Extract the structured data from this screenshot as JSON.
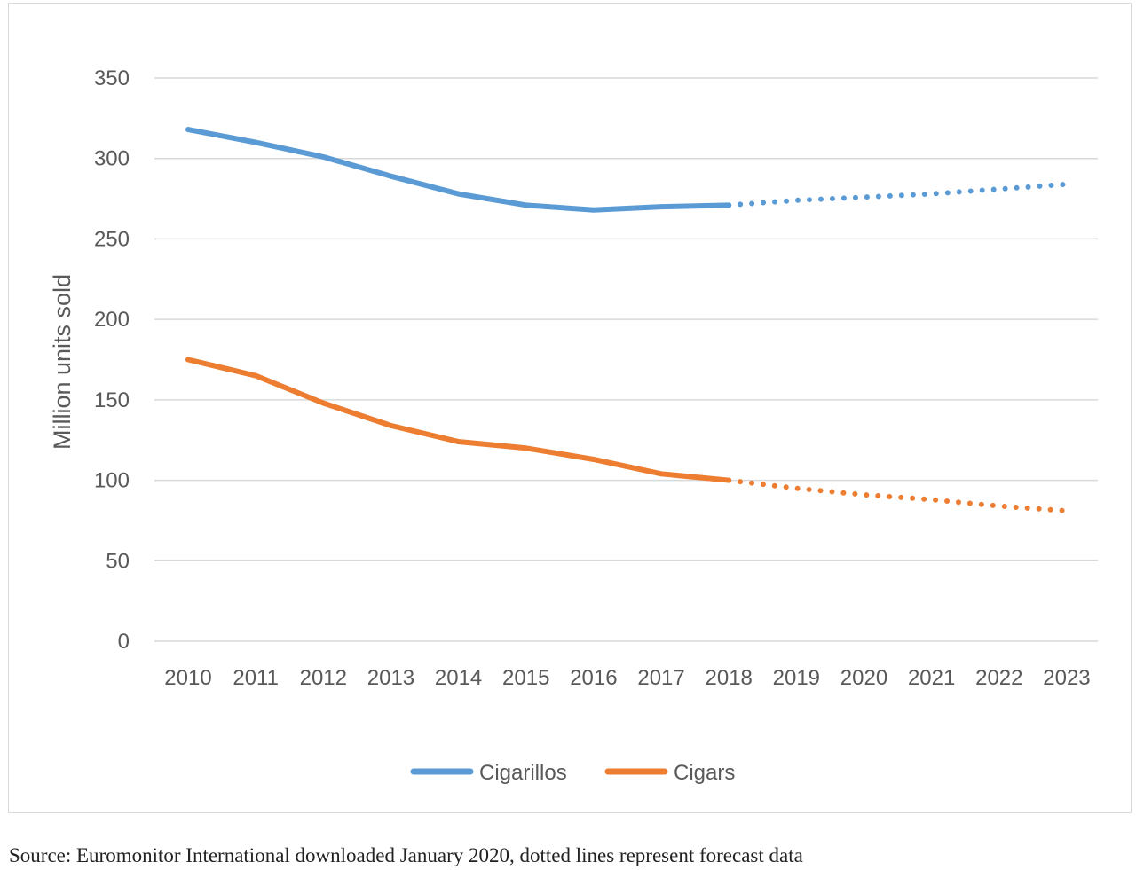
{
  "chart_data": {
    "type": "line",
    "ylabel": "Million units sold",
    "xlabel": "",
    "ylim": [
      0,
      350
    ],
    "y_ticks": [
      0,
      50,
      100,
      150,
      200,
      250,
      300,
      350
    ],
    "x": [
      "2010",
      "2011",
      "2012",
      "2013",
      "2014",
      "2015",
      "2016",
      "2017",
      "2018",
      "2019",
      "2020",
      "2021",
      "2022",
      "2023"
    ],
    "grid": true,
    "legend_position": "bottom",
    "series": [
      {
        "name": "Cigarillos",
        "color": "#5b9bd5",
        "values": [
          318,
          310,
          301,
          289,
          278,
          271,
          268,
          270,
          271,
          274,
          276,
          278,
          281,
          284
        ],
        "forecast_from_index": 8
      },
      {
        "name": "Cigars",
        "color": "#ed7d31",
        "values": [
          175,
          165,
          148,
          134,
          124,
          120,
          113,
          104,
          100,
          95,
          91,
          88,
          84,
          81
        ],
        "forecast_from_index": 8
      }
    ]
  },
  "source_note": "Source: Euromonitor International downloaded January 2020, dotted lines represent forecast data"
}
